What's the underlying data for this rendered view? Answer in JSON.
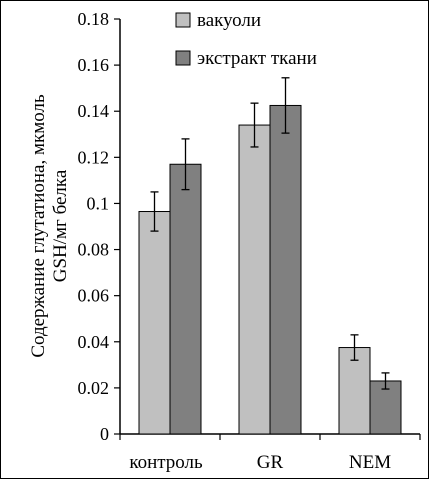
{
  "chart_data": {
    "type": "bar",
    "categories": [
      "контроль",
      "GR",
      "NEM"
    ],
    "series": [
      {
        "name": "вакуоли",
        "color": "#c0c0c0",
        "values": [
          0.0965,
          0.134,
          0.0375
        ],
        "errors": [
          0.0085,
          0.0095,
          0.0055
        ]
      },
      {
        "name": "экстракт ткани",
        "color": "#808080",
        "values": [
          0.117,
          0.1425,
          0.023
        ],
        "errors": [
          0.011,
          0.012,
          0.0035
        ]
      }
    ],
    "ylabel_line1": "Содержание глутатиона, мкмоль",
    "ylabel_line2": "GSH/мг белка",
    "ylim": [
      0,
      0.18
    ],
    "yticks": [
      "0",
      "0.02",
      "0.04",
      "0.06",
      "0.08",
      "0.1",
      "0.12",
      "0.14",
      "0.16",
      "0.18"
    ],
    "grid": false,
    "legend_position": "top-right"
  }
}
